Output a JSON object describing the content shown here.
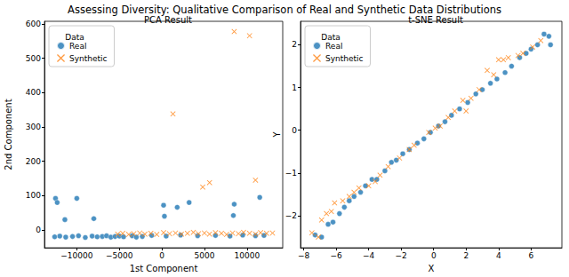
{
  "title": "Assessing Diversity: Qualitative Comparison of Real and Synthetic Data Distributions",
  "chart_data": [
    {
      "type": "scatter",
      "title": "PCA Result",
      "x_label": "1st Component",
      "y_label": "2nd Component",
      "legend": "upper left",
      "legend_title": "Data",
      "grid": false,
      "xlim": [
        -13800,
        14200
      ],
      "xticks": [
        {
          "value": -10000,
          "label": "−10000"
        },
        {
          "value": -5000,
          "label": "−5000"
        },
        0,
        5000,
        10000
      ],
      "ylim": [
        -52,
        608
      ],
      "yticks": [
        0,
        100,
        200,
        300,
        400,
        500,
        600
      ],
      "series": [
        {
          "name": "Real",
          "color": "#1f77b4",
          "marker": "circle",
          "values": [
            [
              -12600,
              -20
            ],
            [
              -12000,
              -18
            ],
            [
              -11300,
              -21
            ],
            [
              -10500,
              -19
            ],
            [
              -9800,
              -17
            ],
            [
              -9000,
              -22
            ],
            [
              -8200,
              -18
            ],
            [
              -7600,
              -20
            ],
            [
              -7000,
              -19
            ],
            [
              -6500,
              -17
            ],
            [
              -6000,
              -21
            ],
            [
              -5500,
              -19
            ],
            [
              -5000,
              -18
            ],
            [
              -4500,
              -20
            ],
            [
              -3500,
              -17
            ],
            [
              -3000,
              -21
            ],
            [
              -2300,
              -19
            ],
            [
              -1200,
              -16
            ],
            [
              500,
              -18
            ],
            [
              2200,
              -15
            ],
            [
              4200,
              -17
            ],
            [
              6300,
              -16
            ],
            [
              8000,
              -18
            ],
            [
              9500,
              -15
            ],
            [
              11000,
              -17
            ],
            [
              12000,
              -16
            ],
            [
              -12500,
              92
            ],
            [
              -12300,
              80
            ],
            [
              -11400,
              30
            ],
            [
              -10000,
              92
            ],
            [
              -8000,
              33
            ],
            [
              200,
              72
            ],
            [
              300,
              40
            ],
            [
              1800,
              66
            ],
            [
              3200,
              80
            ],
            [
              8400,
              42
            ],
            [
              8500,
              75
            ],
            [
              11500,
              95
            ]
          ]
        },
        {
          "name": "Synthetic",
          "color": "#ff7f0e",
          "marker": "x",
          "values": [
            [
              -5200,
              -12
            ],
            [
              -4600,
              -10
            ],
            [
              -3900,
              -13
            ],
            [
              -3300,
              -11
            ],
            [
              -2600,
              -9
            ],
            [
              -2000,
              -12
            ],
            [
              -1300,
              -10
            ],
            [
              -600,
              -13
            ],
            [
              200,
              -8
            ],
            [
              900,
              -11
            ],
            [
              1600,
              -9
            ],
            [
              2300,
              -12
            ],
            [
              3000,
              -10
            ],
            [
              3700,
              -7
            ],
            [
              4300,
              -11
            ],
            [
              5000,
              -9
            ],
            [
              5600,
              -12
            ],
            [
              6300,
              -8
            ],
            [
              7000,
              -10
            ],
            [
              7600,
              -13
            ],
            [
              8300,
              -9
            ],
            [
              9000,
              -11
            ],
            [
              9600,
              -7
            ],
            [
              10300,
              -10
            ],
            [
              11000,
              -12
            ],
            [
              11600,
              -8
            ],
            [
              12300,
              -10
            ],
            [
              13000,
              -9
            ],
            [
              1300,
              338
            ],
            [
              4800,
              125
            ],
            [
              5600,
              138
            ],
            [
              8500,
              578
            ],
            [
              10300,
              566
            ],
            [
              11000,
              145
            ]
          ]
        }
      ]
    },
    {
      "type": "scatter",
      "title": "t-SNE Result",
      "x_label": "X",
      "y_label": "Y",
      "legend": "upper left",
      "legend_title": "Data",
      "grid": false,
      "xlim": [
        -8.2,
        7.9
      ],
      "xticks": [
        {
          "value": -8,
          "label": "−8"
        },
        {
          "value": -6,
          "label": "−6"
        },
        {
          "value": -4,
          "label": "−4"
        },
        {
          "value": -2,
          "label": "−2"
        },
        0,
        2,
        4,
        6
      ],
      "ylim": [
        -2.75,
        2.55
      ],
      "yticks": [
        {
          "value": -2,
          "label": "−2"
        },
        {
          "value": -1,
          "label": "−1"
        },
        0,
        1,
        2
      ],
      "series": [
        {
          "name": "Real",
          "color": "#1f77b4",
          "marker": "circle",
          "values": [
            [
              -7.3,
              -2.45
            ],
            [
              -6.9,
              -2.5
            ],
            [
              -6.5,
              -2.2
            ],
            [
              -6.2,
              -2.15
            ],
            [
              -5.8,
              -1.95
            ],
            [
              -5.5,
              -1.8
            ],
            [
              -5.2,
              -1.65
            ],
            [
              -4.9,
              -1.55
            ],
            [
              -4.5,
              -1.45
            ],
            [
              -4.2,
              -1.3
            ],
            [
              -3.8,
              -1.15
            ],
            [
              -3.5,
              -1.15
            ],
            [
              -3.0,
              -0.95
            ],
            [
              -2.6,
              -0.75
            ],
            [
              -2.3,
              -0.7
            ],
            [
              -1.9,
              -0.55
            ],
            [
              -1.5,
              -0.45
            ],
            [
              -1.0,
              -0.3
            ],
            [
              -0.6,
              -0.2
            ],
            [
              -0.2,
              -0.05
            ],
            [
              0.3,
              0.1
            ],
            [
              0.7,
              0.2
            ],
            [
              1.1,
              0.35
            ],
            [
              1.6,
              0.5
            ],
            [
              2.1,
              0.65
            ],
            [
              2.6,
              0.85
            ],
            [
              3.0,
              0.95
            ],
            [
              3.5,
              1.1
            ],
            [
              3.9,
              1.2
            ],
            [
              4.4,
              1.35
            ],
            [
              4.8,
              1.5
            ],
            [
              5.3,
              1.7
            ],
            [
              5.7,
              1.8
            ],
            [
              6.0,
              1.9
            ],
            [
              6.4,
              2.0
            ],
            [
              6.8,
              2.25
            ],
            [
              7.1,
              2.2
            ],
            [
              7.2,
              2.0
            ]
          ]
        },
        {
          "name": "Synthetic",
          "color": "#ff7f0e",
          "marker": "x",
          "values": [
            [
              -7.5,
              -2.4
            ],
            [
              -7.1,
              -2.5
            ],
            [
              -6.9,
              -2.1
            ],
            [
              -6.6,
              -1.95
            ],
            [
              -6.3,
              -1.9
            ],
            [
              -6.1,
              -1.7
            ],
            [
              -5.6,
              -1.65
            ],
            [
              -5.2,
              -1.55
            ],
            [
              -4.9,
              -1.45
            ],
            [
              -4.6,
              -1.35
            ],
            [
              -4.0,
              -1.3
            ],
            [
              -3.6,
              -1.2
            ],
            [
              -3.3,
              -1.05
            ],
            [
              -2.8,
              -0.85
            ],
            [
              -2.1,
              -0.65
            ],
            [
              -1.5,
              -0.45
            ],
            [
              -1.2,
              -0.35
            ],
            [
              -0.3,
              -0.05
            ],
            [
              0.1,
              0.05
            ],
            [
              0.4,
              0.1
            ],
            [
              0.9,
              0.3
            ],
            [
              1.3,
              0.45
            ],
            [
              1.8,
              0.7
            ],
            [
              2.0,
              0.45
            ],
            [
              2.3,
              0.75
            ],
            [
              2.8,
              0.95
            ],
            [
              3.3,
              1.4
            ],
            [
              3.7,
              1.3
            ],
            [
              4.0,
              1.65
            ],
            [
              4.3,
              1.65
            ],
            [
              4.6,
              1.7
            ],
            [
              5.2,
              1.75
            ],
            [
              5.5,
              1.8
            ],
            [
              6.1,
              1.95
            ],
            [
              6.6,
              2.1
            ]
          ]
        }
      ]
    }
  ]
}
